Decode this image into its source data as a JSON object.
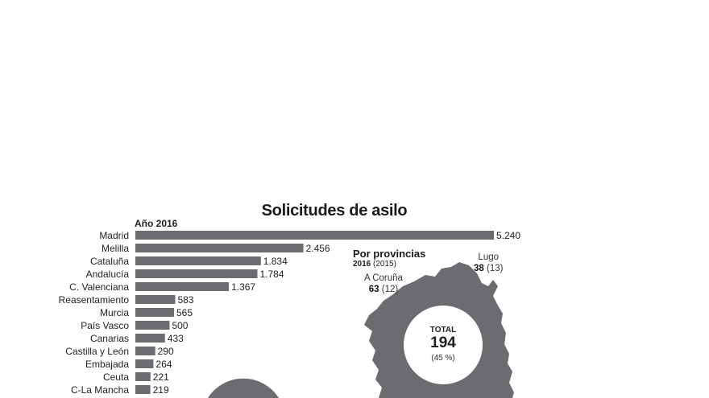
{
  "chart_data": {
    "type": "bar",
    "orientation": "horizontal",
    "title": "Solicitudes de asilo",
    "subtitle": "Año 2016",
    "categories": [
      "Madrid",
      "Melilla",
      "Cataluña",
      "Andalucía",
      "C. Valenciana",
      "Reasentamiento",
      "Murcia",
      "País Vasco",
      "Canarias",
      "Castilla y León",
      "Embajada",
      "Ceuta",
      "C-La Mancha"
    ],
    "values": [
      5240,
      2456,
      1834,
      1784,
      1367,
      583,
      565,
      500,
      433,
      290,
      264,
      221,
      219
    ],
    "value_labels": [
      "5.240",
      "2.456",
      "1.834",
      "1.784",
      "1.367",
      "583",
      "565",
      "500",
      "433",
      "290",
      "264",
      "221",
      "219"
    ],
    "bar_color": "#6b6c70"
  },
  "provinces": {
    "heading": "Por provincias",
    "subheading_bold": "2016",
    "subheading_rest": "(2015)",
    "items": [
      {
        "name": "Lugo",
        "value": "38",
        "prev": "(13)"
      },
      {
        "name": "A Coruña",
        "value": "63",
        "prev": "(12)"
      }
    ],
    "total_label": "TOTAL",
    "total_value": "194",
    "total_pct": "(45 %)",
    "map_color": "#6b6c70"
  }
}
